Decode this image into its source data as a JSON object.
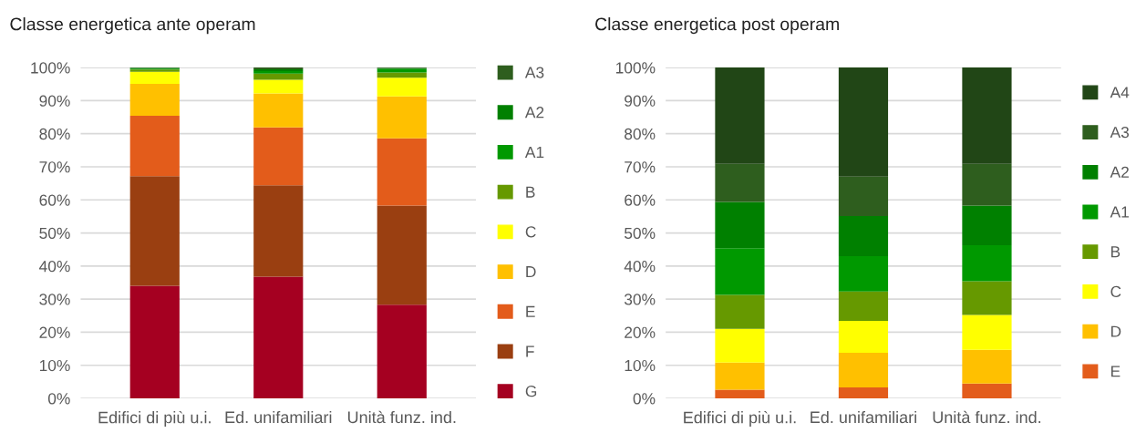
{
  "chart_data": [
    {
      "type": "bar",
      "title": "Classe energetica ante operam",
      "stacked": true,
      "grid": "y",
      "legend": "right",
      "categories": [
        "Edifici di più u.i.",
        "Ed. unifamiliari",
        "Unità funz. ind."
      ],
      "ylim": [
        0,
        100
      ],
      "yticks": [
        {
          "value": 0,
          "label": "0%"
        },
        {
          "value": 10,
          "label": "10%"
        },
        {
          "value": 20,
          "label": "20%"
        },
        {
          "value": 30,
          "label": "30%"
        },
        {
          "value": 40,
          "label": "40%"
        },
        {
          "value": 50,
          "label": "50%"
        },
        {
          "value": 60,
          "label": "60%"
        },
        {
          "value": 70,
          "label": "70%"
        },
        {
          "value": 80,
          "label": "80%"
        },
        {
          "value": 90,
          "label": "90%"
        },
        {
          "value": 100,
          "label": "100%"
        }
      ],
      "series": [
        {
          "name": "G",
          "color": "#a50021",
          "values": [
            34.0,
            36.8,
            28.3
          ]
        },
        {
          "name": "F",
          "color": "#9a3f11",
          "values": [
            33.2,
            27.6,
            30.0
          ]
        },
        {
          "name": "E",
          "color": "#e35c1b",
          "values": [
            18.2,
            17.5,
            20.3
          ]
        },
        {
          "name": "D",
          "color": "#ffc000",
          "values": [
            9.7,
            10.3,
            12.7
          ]
        },
        {
          "name": "C",
          "color": "#ffff00",
          "values": [
            3.6,
            4.1,
            5.6
          ]
        },
        {
          "name": "B",
          "color": "#669900",
          "values": [
            0.7,
            1.9,
            1.6
          ]
        },
        {
          "name": "A1",
          "color": "#009900",
          "values": [
            0.3,
            0.7,
            1.1
          ]
        },
        {
          "name": "A2",
          "color": "#008000",
          "values": [
            0.2,
            0.6,
            0.2
          ]
        },
        {
          "name": "A3",
          "color": "#2e5e1e",
          "values": [
            0.1,
            0.5,
            0.2
          ]
        }
      ]
    },
    {
      "type": "bar",
      "title": "Classe energetica post operam",
      "stacked": true,
      "grid": "y",
      "legend": "right",
      "categories": [
        "Edifici di più u.i.",
        "Ed. unifamiliari",
        "Unità funz. ind."
      ],
      "ylim": [
        0,
        100
      ],
      "yticks": [
        {
          "value": 0,
          "label": "0%"
        },
        {
          "value": 10,
          "label": "10%"
        },
        {
          "value": 20,
          "label": "20%"
        },
        {
          "value": 30,
          "label": "30%"
        },
        {
          "value": 40,
          "label": "40%"
        },
        {
          "value": 50,
          "label": "50%"
        },
        {
          "value": 60,
          "label": "60%"
        },
        {
          "value": 70,
          "label": "70%"
        },
        {
          "value": 80,
          "label": "80%"
        },
        {
          "value": 90,
          "label": "90%"
        },
        {
          "value": 100,
          "label": "100%"
        }
      ],
      "series": [
        {
          "name": "E",
          "color": "#e35c1b",
          "values": [
            2.6,
            3.3,
            4.5
          ]
        },
        {
          "name": "D",
          "color": "#ffc000",
          "values": [
            8.2,
            10.5,
            10.2
          ]
        },
        {
          "name": "C",
          "color": "#ffff00",
          "values": [
            10.2,
            9.6,
            10.5
          ]
        },
        {
          "name": "B",
          "color": "#669900",
          "values": [
            10.3,
            8.9,
            10.2
          ]
        },
        {
          "name": "A1",
          "color": "#009900",
          "values": [
            14.1,
            10.7,
            10.9
          ]
        },
        {
          "name": "A2",
          "color": "#008000",
          "values": [
            14.0,
            12.1,
            12.0
          ]
        },
        {
          "name": "A3",
          "color": "#2e5e1e",
          "values": [
            11.5,
            11.9,
            12.6
          ]
        },
        {
          "name": "A4",
          "color": "#214616",
          "values": [
            29.1,
            33.0,
            29.1
          ]
        }
      ]
    }
  ]
}
